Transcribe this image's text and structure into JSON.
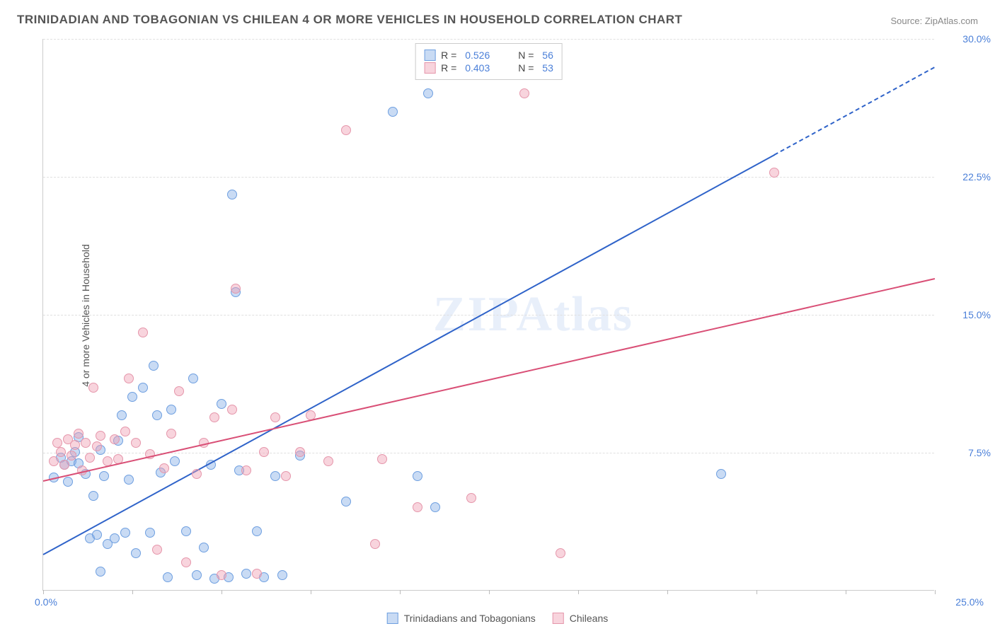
{
  "title": "TRINIDADIAN AND TOBAGONIAN VS CHILEAN 4 OR MORE VEHICLES IN HOUSEHOLD CORRELATION CHART",
  "source": "Source: ZipAtlas.com",
  "ylabel": "4 or more Vehicles in Household",
  "watermark": "ZIPAtlas",
  "axes": {
    "xlim": [
      0,
      25
    ],
    "ylim": [
      0,
      30
    ],
    "xtick_start": "0.0%",
    "xtick_end": "25.0%",
    "xtick_positions_pct": [
      0,
      10,
      20,
      30,
      40,
      50,
      60,
      70,
      80,
      90,
      100
    ],
    "yticks": [
      {
        "val": 7.5,
        "label": "7.5%"
      },
      {
        "val": 15.0,
        "label": "15.0%"
      },
      {
        "val": 22.5,
        "label": "22.5%"
      },
      {
        "val": 30.0,
        "label": "30.0%"
      }
    ],
    "grid_color": "#e0e0e0",
    "axis_color": "#cccccc",
    "tick_color": "#4a7fd8",
    "label_fontsize": 14,
    "title_fontsize": 17
  },
  "series": [
    {
      "name": "Trinidadians and Tobagonians",
      "short": "trinidad",
      "fill": "rgba(135,175,230,0.45)",
      "stroke": "#6e9fe0",
      "line_color": "#2f63c9",
      "r": 0.526,
      "n": 56,
      "regression": {
        "x1": 0,
        "y1": 2.0,
        "x2": 25,
        "y2": 28.5,
        "dash_after_x": 20.5
      },
      "points": [
        [
          0.3,
          6.1
        ],
        [
          0.5,
          7.2
        ],
        [
          0.6,
          6.8
        ],
        [
          0.7,
          5.9
        ],
        [
          0.8,
          7.0
        ],
        [
          0.9,
          7.5
        ],
        [
          1.0,
          6.9
        ],
        [
          1.0,
          8.3
        ],
        [
          1.2,
          6.3
        ],
        [
          1.3,
          2.8
        ],
        [
          1.4,
          5.1
        ],
        [
          1.5,
          3.0
        ],
        [
          1.6,
          7.6
        ],
        [
          1.7,
          6.2
        ],
        [
          1.6,
          1.0
        ],
        [
          1.8,
          2.5
        ],
        [
          2.0,
          2.8
        ],
        [
          2.1,
          8.1
        ],
        [
          2.2,
          9.5
        ],
        [
          2.3,
          3.1
        ],
        [
          2.4,
          6.0
        ],
        [
          2.5,
          10.5
        ],
        [
          2.6,
          2.0
        ],
        [
          2.8,
          11.0
        ],
        [
          3.0,
          3.1
        ],
        [
          3.1,
          12.2
        ],
        [
          3.2,
          9.5
        ],
        [
          3.3,
          6.4
        ],
        [
          3.5,
          0.7
        ],
        [
          3.6,
          9.8
        ],
        [
          3.7,
          7.0
        ],
        [
          4.0,
          3.2
        ],
        [
          4.2,
          11.5
        ],
        [
          4.3,
          0.8
        ],
        [
          4.5,
          2.3
        ],
        [
          4.7,
          6.8
        ],
        [
          4.8,
          0.6
        ],
        [
          5.0,
          10.1
        ],
        [
          5.2,
          0.7
        ],
        [
          5.3,
          21.5
        ],
        [
          5.5,
          6.5
        ],
        [
          5.7,
          0.9
        ],
        [
          6.0,
          3.2
        ],
        [
          6.2,
          0.7
        ],
        [
          6.5,
          6.2
        ],
        [
          6.7,
          0.8
        ],
        [
          7.2,
          7.3
        ],
        [
          8.5,
          4.8
        ],
        [
          9.8,
          26.0
        ],
        [
          10.5,
          6.2
        ],
        [
          10.8,
          27.0
        ],
        [
          11.0,
          4.5
        ],
        [
          19.0,
          6.3
        ],
        [
          5.4,
          16.2
        ]
      ]
    },
    {
      "name": "Chileans",
      "short": "chile",
      "fill": "rgba(240,160,180,0.45)",
      "stroke": "#e596ab",
      "line_color": "#d94f76",
      "r": 0.403,
      "n": 53,
      "regression": {
        "x1": 0,
        "y1": 6.0,
        "x2": 25,
        "y2": 17.0,
        "dash_after_x": 25
      },
      "points": [
        [
          0.3,
          7.0
        ],
        [
          0.4,
          8.0
        ],
        [
          0.5,
          7.5
        ],
        [
          0.6,
          6.8
        ],
        [
          0.7,
          8.2
        ],
        [
          0.8,
          7.3
        ],
        [
          0.9,
          7.9
        ],
        [
          1.0,
          8.5
        ],
        [
          1.1,
          6.5
        ],
        [
          1.2,
          8.0
        ],
        [
          1.3,
          7.2
        ],
        [
          1.4,
          11.0
        ],
        [
          1.5,
          7.8
        ],
        [
          1.6,
          8.4
        ],
        [
          1.8,
          7.0
        ],
        [
          2.0,
          8.2
        ],
        [
          2.1,
          7.1
        ],
        [
          2.3,
          8.6
        ],
        [
          2.4,
          11.5
        ],
        [
          2.6,
          8.0
        ],
        [
          2.8,
          14.0
        ],
        [
          3.0,
          7.4
        ],
        [
          3.2,
          2.2
        ],
        [
          3.4,
          6.6
        ],
        [
          3.6,
          8.5
        ],
        [
          3.8,
          10.8
        ],
        [
          4.0,
          1.5
        ],
        [
          4.3,
          6.3
        ],
        [
          4.5,
          8.0
        ],
        [
          4.8,
          9.4
        ],
        [
          5.0,
          0.8
        ],
        [
          5.3,
          9.8
        ],
        [
          5.4,
          16.4
        ],
        [
          5.7,
          6.5
        ],
        [
          6.0,
          0.9
        ],
        [
          6.2,
          7.5
        ],
        [
          6.5,
          9.4
        ],
        [
          6.8,
          6.2
        ],
        [
          7.2,
          7.5
        ],
        [
          7.5,
          9.5
        ],
        [
          8.0,
          7.0
        ],
        [
          8.5,
          25.0
        ],
        [
          9.3,
          2.5
        ],
        [
          9.5,
          7.1
        ],
        [
          10.5,
          4.5
        ],
        [
          12.0,
          5.0
        ],
        [
          13.5,
          27.0
        ],
        [
          14.5,
          2.0
        ],
        [
          20.5,
          22.7
        ]
      ]
    }
  ]
}
